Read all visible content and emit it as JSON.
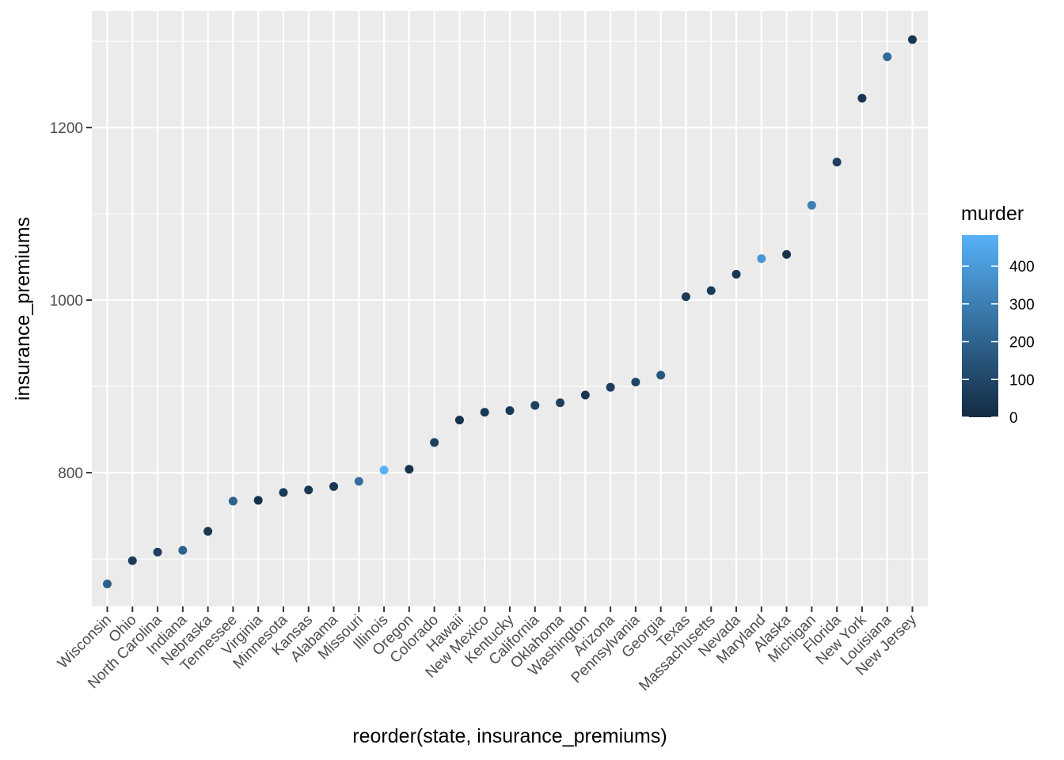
{
  "chart_data": {
    "type": "scatter",
    "title": "",
    "xlabel": "reorder(state, insurance_premiums)",
    "ylabel": "insurance_premiums",
    "ylim": [
      645,
      1335
    ],
    "yticks": [
      800,
      1000,
      1200
    ],
    "grid": true,
    "background": "#ebebeb",
    "legend": {
      "title": "murder",
      "position": "right",
      "ticks": [
        0,
        100,
        200,
        300,
        400
      ],
      "range": [
        0,
        482
      ],
      "color_low": "#132b43",
      "color_high": "#56b1f7"
    },
    "points": [
      {
        "state": "Wisconsin",
        "insurance_premiums": 671,
        "murder": 190
      },
      {
        "state": "Ohio",
        "insurance_premiums": 698,
        "murder": 60
      },
      {
        "state": "North Carolina",
        "insurance_premiums": 708,
        "murder": 70
      },
      {
        "state": "Indiana",
        "insurance_premiums": 710,
        "murder": 200
      },
      {
        "state": "Nebraska",
        "insurance_premiums": 732,
        "murder": 40
      },
      {
        "state": "Tennessee",
        "insurance_premiums": 767,
        "murder": 200
      },
      {
        "state": "Virginia",
        "insurance_premiums": 768,
        "murder": 30
      },
      {
        "state": "Minnesota",
        "insurance_premiums": 777,
        "murder": 60
      },
      {
        "state": "Kansas",
        "insurance_premiums": 780,
        "murder": 40
      },
      {
        "state": "Alabama",
        "insurance_premiums": 784,
        "murder": 50
      },
      {
        "state": "Missouri",
        "insurance_premiums": 790,
        "murder": 240
      },
      {
        "state": "Illinois",
        "insurance_premiums": 803,
        "murder": 482
      },
      {
        "state": "Oregon",
        "insurance_premiums": 804,
        "murder": 30
      },
      {
        "state": "Colorado",
        "insurance_premiums": 835,
        "murder": 80
      },
      {
        "state": "Hawaii",
        "insurance_premiums": 861,
        "murder": 20
      },
      {
        "state": "New Mexico",
        "insurance_premiums": 870,
        "murder": 40
      },
      {
        "state": "Kentucky",
        "insurance_premiums": 872,
        "murder": 50
      },
      {
        "state": "California",
        "insurance_premiums": 878,
        "murder": 80
      },
      {
        "state": "Oklahoma",
        "insurance_premiums": 881,
        "murder": 70
      },
      {
        "state": "Washington",
        "insurance_premiums": 890,
        "murder": 40
      },
      {
        "state": "Arizona",
        "insurance_premiums": 899,
        "murder": 70
      },
      {
        "state": "Pennsylvania",
        "insurance_premiums": 905,
        "murder": 90
      },
      {
        "state": "Georgia",
        "insurance_premiums": 913,
        "murder": 150
      },
      {
        "state": "Texas",
        "insurance_premiums": 1004,
        "murder": 60
      },
      {
        "state": "Massachusetts",
        "insurance_premiums": 1011,
        "murder": 60
      },
      {
        "state": "Nevada",
        "insurance_premiums": 1030,
        "murder": 40
      },
      {
        "state": "Maryland",
        "insurance_premiums": 1048,
        "murder": 390
      },
      {
        "state": "Alaska",
        "insurance_premiums": 1053,
        "murder": 30
      },
      {
        "state": "Michigan",
        "insurance_premiums": 1110,
        "murder": 310
      },
      {
        "state": "Florida",
        "insurance_premiums": 1160,
        "murder": 70
      },
      {
        "state": "New York",
        "insurance_premiums": 1234,
        "murder": 40
      },
      {
        "state": "Louisiana",
        "insurance_premiums": 1282,
        "murder": 230
      },
      {
        "state": "New Jersey",
        "insurance_premiums": 1302,
        "murder": 40
      }
    ]
  }
}
